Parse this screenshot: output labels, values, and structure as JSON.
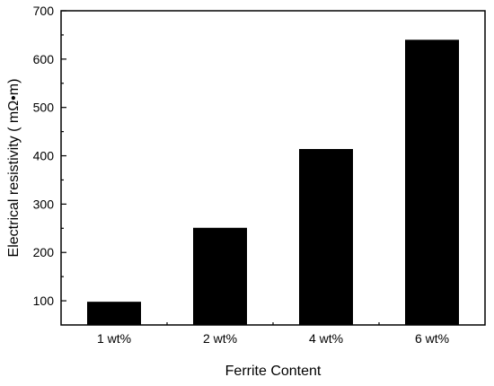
{
  "chart_data": {
    "type": "bar",
    "categories": [
      "1 wt%",
      "2 wt%",
      "4 wt%",
      "6 wt%"
    ],
    "values": [
      98,
      251,
      414,
      640
    ],
    "xlabel": "Ferrite Content",
    "ylabel": "Electrical resistivity ( mΩ•m)",
    "ylim": [
      50,
      700
    ],
    "yticks": [
      100,
      200,
      300,
      400,
      500,
      600,
      700
    ],
    "grid": false,
    "legend": "none",
    "bar_color": "#000000"
  }
}
